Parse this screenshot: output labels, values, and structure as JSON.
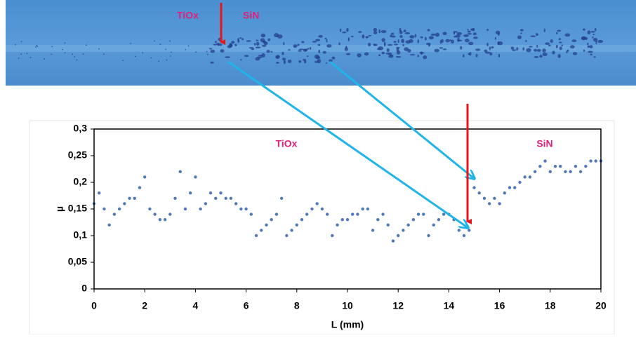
{
  "image": {
    "labels": [
      "TiOx",
      "SiN"
    ]
  },
  "chart_data": {
    "type": "scatter",
    "x_label": "L (mm)",
    "y_label": "µ",
    "annotations": [
      "TiOx",
      "SiN"
    ],
    "series": [
      {
        "color": "#4f79b8",
        "x": [
          0,
          0.2,
          0.4,
          0.6,
          0.8,
          1.0,
          1.2,
          1.4,
          1.6,
          1.8,
          2.0,
          2.2,
          2.4,
          2.6,
          2.8,
          3.0,
          3.2,
          3.4,
          3.6,
          3.8,
          4.0,
          4.2,
          4.4,
          4.6,
          4.8,
          5.0,
          5.2,
          5.4,
          5.6,
          5.8,
          6.0,
          6.2,
          6.4,
          6.6,
          6.8,
          7.0,
          7.2,
          7.4,
          7.6,
          7.8,
          8.0,
          8.2,
          8.4,
          8.6,
          8.8,
          9.0,
          9.2,
          9.4,
          9.6,
          9.8,
          10.0,
          10.2,
          10.4,
          10.6,
          10.8,
          11.0,
          11.2,
          11.4,
          11.6,
          11.8,
          12.0,
          12.2,
          12.4,
          12.6,
          12.8,
          13.0,
          13.2,
          13.4,
          13.6,
          13.8,
          14.0,
          14.2,
          14.4,
          14.6,
          14.8,
          15.0,
          15.2,
          15.4,
          15.6,
          15.8,
          16.0,
          16.2,
          16.4,
          16.6,
          16.8,
          17.0,
          17.2,
          17.4,
          17.6,
          17.8,
          18.0,
          18.2,
          18.4,
          18.6,
          18.8,
          19.0,
          19.2,
          19.4,
          19.6,
          19.8,
          20.0
        ],
        "values": [
          0.16,
          0.18,
          0.15,
          0.12,
          0.14,
          0.15,
          0.16,
          0.17,
          0.17,
          0.19,
          0.21,
          0.15,
          0.14,
          0.13,
          0.13,
          0.14,
          0.17,
          0.22,
          0.15,
          0.18,
          0.21,
          0.15,
          0.16,
          0.18,
          0.17,
          0.18,
          0.17,
          0.17,
          0.16,
          0.15,
          0.15,
          0.14,
          0.1,
          0.11,
          0.12,
          0.13,
          0.14,
          0.17,
          0.1,
          0.11,
          0.12,
          0.13,
          0.14,
          0.15,
          0.16,
          0.15,
          0.14,
          0.1,
          0.12,
          0.13,
          0.13,
          0.14,
          0.14,
          0.15,
          0.15,
          0.11,
          0.13,
          0.14,
          0.12,
          0.09,
          0.1,
          0.11,
          0.12,
          0.13,
          0.14,
          0.14,
          0.1,
          0.12,
          0.13,
          0.14,
          0.14,
          0.13,
          0.11,
          0.1,
          0.11,
          0.19,
          0.18,
          0.17,
          0.16,
          0.17,
          0.16,
          0.18,
          0.19,
          0.19,
          0.2,
          0.21,
          0.21,
          0.22,
          0.23,
          0.24,
          0.22,
          0.23,
          0.23,
          0.22,
          0.22,
          0.23,
          0.22,
          0.23,
          0.24,
          0.24,
          0.24
        ]
      }
    ],
    "xlim": [
      0,
      20
    ],
    "xticks": [
      0,
      2,
      4,
      6,
      8,
      10,
      12,
      14,
      16,
      18,
      20
    ],
    "ylim": [
      0,
      0.3
    ],
    "yticks": [
      0,
      {
        "value": 0.05,
        "label": "0,05"
      },
      {
        "value": 0.1,
        "label": "0,1"
      },
      {
        "value": 0.15,
        "label": "0,15"
      },
      {
        "value": 0.2,
        "label": "0,2"
      },
      {
        "value": 0.25,
        "label": "0,25"
      },
      {
        "value": 0.3,
        "label": "0,3"
      }
    ]
  }
}
